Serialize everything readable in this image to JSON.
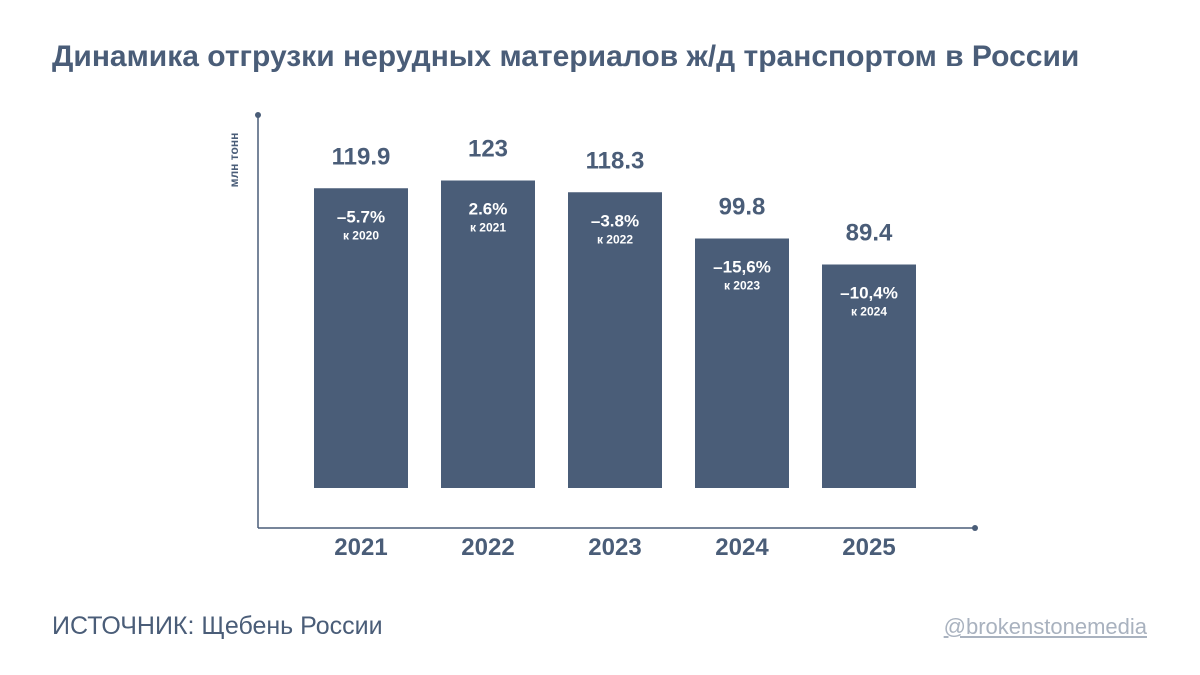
{
  "title": "Динамика отгрузки нерудных материалов ж/д транспортом в России",
  "source": "ИСТОЧНИК: Щебень России",
  "handle": "@brokenstonemedia",
  "colors": {
    "bar": "#4a5d78",
    "text": "#4a5d78",
    "axis": "#4a5d78",
    "muted": "#a9b2bf"
  },
  "chart_data": {
    "type": "bar",
    "ylabel": "млн тонн",
    "categories": [
      "2021",
      "2022",
      "2023",
      "2024",
      "2025"
    ],
    "values": [
      119.9,
      123,
      118.3,
      99.8,
      89.4
    ],
    "value_labels": [
      "119.9",
      "123",
      "118.3",
      "99.8",
      "89.4"
    ],
    "changes": [
      "–5.7%",
      "2.6%",
      "–3.8%",
      "–15,6%",
      "–10,4%"
    ],
    "change_refs": [
      "к 2020",
      "к 2021",
      "к 2022",
      "к 2023",
      "к 2024"
    ],
    "ylim": [
      0,
      135
    ],
    "grid": false,
    "legend": "none"
  }
}
